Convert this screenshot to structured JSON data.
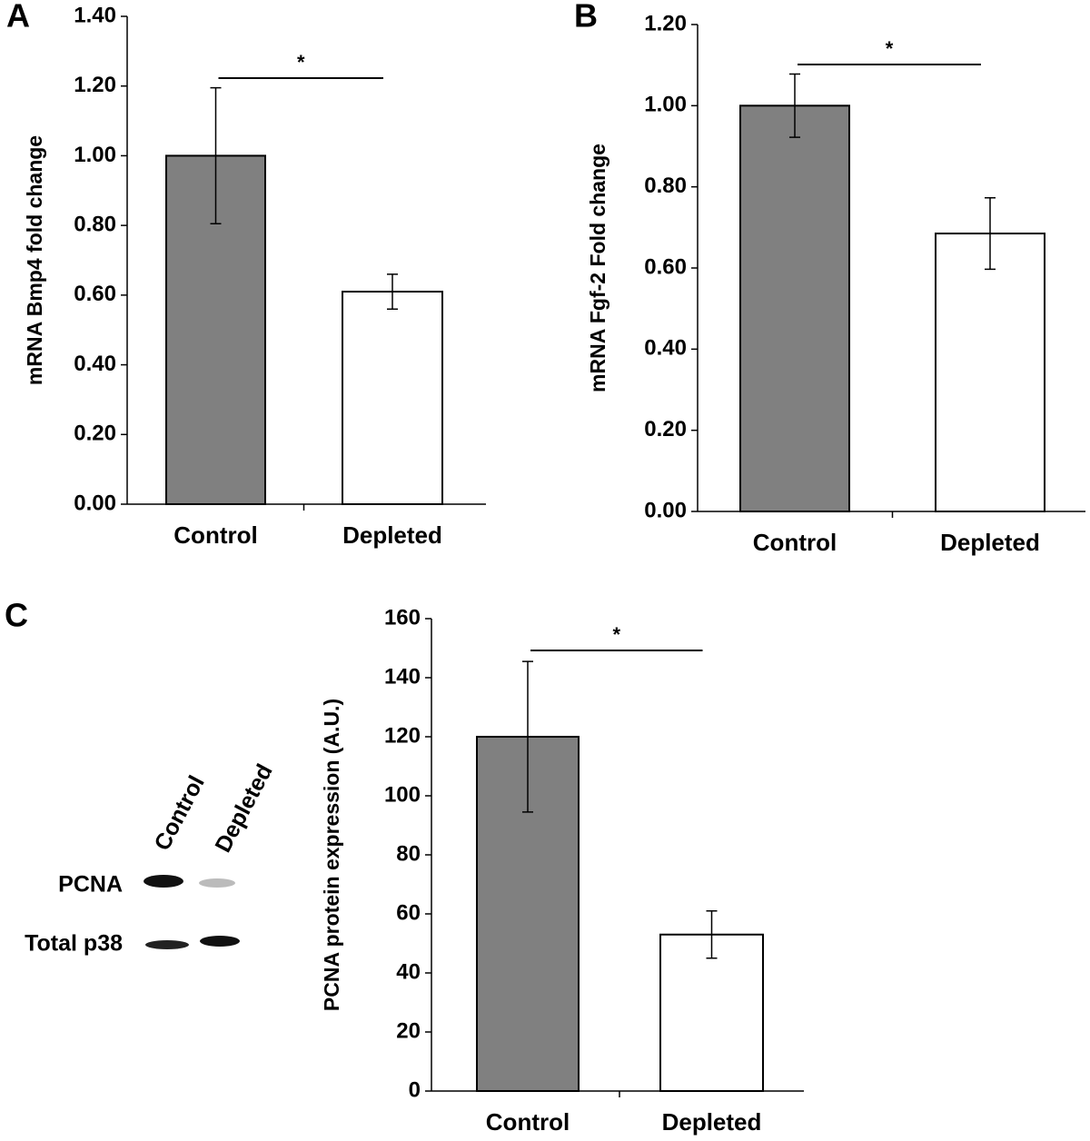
{
  "chart_data": [
    {
      "type": "bar",
      "panel": "A",
      "ylabel": "mRNA Bmp4 fold change",
      "categories": [
        "Control",
        "Depleted"
      ],
      "values": [
        1.0,
        0.61
      ],
      "errors": [
        0.195,
        0.05
      ],
      "colors": [
        "#808080",
        "#ffffff"
      ],
      "significance": "*",
      "ylim": [
        0,
        1.4
      ],
      "yticks": [
        {
          "value": 0,
          "label": "0.00"
        },
        {
          "value": 0.2,
          "label": "0.20"
        },
        {
          "value": 0.4,
          "label": "0.40"
        },
        {
          "value": 0.6,
          "label": "0.60"
        },
        {
          "value": 0.8,
          "label": "0.80"
        },
        {
          "value": 1.0,
          "label": "1.00"
        },
        {
          "value": 1.2,
          "label": "1.20"
        },
        {
          "value": 1.4,
          "label": "1.40"
        }
      ]
    },
    {
      "type": "bar",
      "panel": "B",
      "ylabel": "mRNA Fgf-2 Fold change",
      "categories": [
        "Control",
        "Depleted"
      ],
      "values": [
        1.0,
        0.685
      ],
      "errors": [
        0.078,
        0.088
      ],
      "colors": [
        "#808080",
        "#ffffff"
      ],
      "significance": "*",
      "ylim": [
        0,
        1.2
      ],
      "yticks": [
        {
          "value": 0,
          "label": "0.00"
        },
        {
          "value": 0.2,
          "label": "0.20"
        },
        {
          "value": 0.4,
          "label": "0.40"
        },
        {
          "value": 0.6,
          "label": "0.60"
        },
        {
          "value": 0.8,
          "label": "0.80"
        },
        {
          "value": 1.0,
          "label": "1.00"
        },
        {
          "value": 1.2,
          "label": "1.20"
        }
      ]
    },
    {
      "type": "bar",
      "panel": "C",
      "ylabel": "PCNA protein expression (A.U.)",
      "categories": [
        "Control",
        "Depleted"
      ],
      "values": [
        120,
        53
      ],
      "errors": [
        25.5,
        8
      ],
      "colors": [
        "#808080",
        "#ffffff"
      ],
      "significance": "*",
      "ylim": [
        0,
        160
      ],
      "yticks": [
        0,
        20,
        40,
        60,
        80,
        100,
        120,
        140,
        160
      ],
      "blot": {
        "lanes": [
          "Control",
          "Depleted"
        ],
        "rows": [
          "PCNA",
          "Total p38"
        ]
      }
    }
  ]
}
